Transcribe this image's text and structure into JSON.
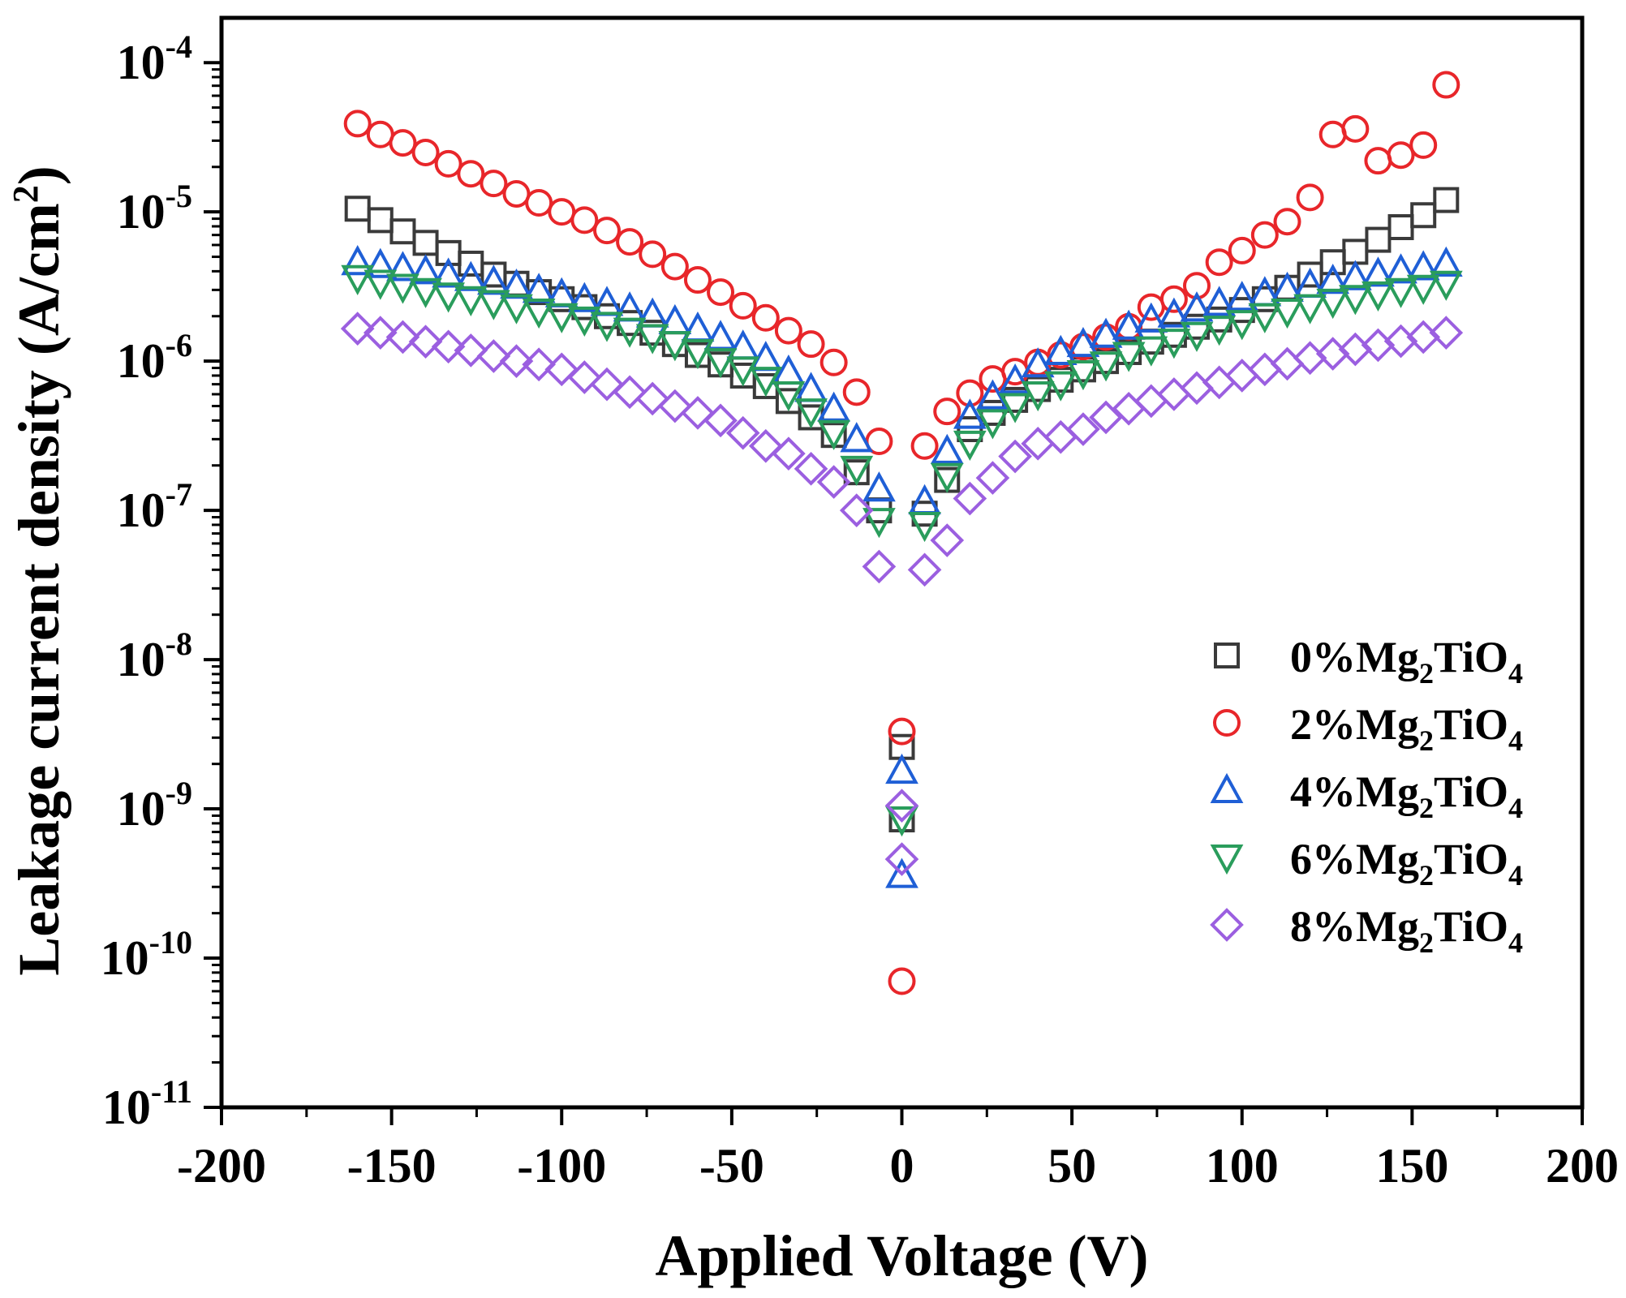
{
  "chart_data": {
    "type": "scatter",
    "title": "",
    "xlabel": "Applied Voltage (V)",
    "ylabel": "Leakage current density (A/cm²)",
    "ylabel_main": "Leakage current density (A/cm",
    "ylabel_sup": "2",
    "ylabel_end": ")",
    "xlim": [
      -200,
      200
    ],
    "ylim_exp": [
      -11,
      -3.7
    ],
    "yscale": "log",
    "x_ticks": [
      -200,
      -150,
      -100,
      -50,
      0,
      50,
      100,
      150,
      200
    ],
    "x_tick_labels": [
      "-200",
      "-150",
      "-100",
      "-50",
      "0",
      "50",
      "100",
      "150",
      "200"
    ],
    "y_tick_exps": [
      -11,
      -10,
      -9,
      -8,
      -7,
      -6,
      -5,
      -4
    ],
    "y_tick_base": "10",
    "y_tick_sups": [
      "-11",
      "-10",
      "-9",
      "-8",
      "-7",
      "-6",
      "-5",
      "-4"
    ],
    "legend_position": "center-right",
    "series": [
      {
        "name": "0%Mg2TiO4",
        "label_parts": [
          "0%Mg",
          "2",
          "TiO",
          "4"
        ],
        "marker": "square",
        "color": "#3a3a3a",
        "points": [
          [
            -160,
            1.05e-05
          ],
          [
            -153.3,
            8.8e-06
          ],
          [
            -146.7,
            7.4e-06
          ],
          [
            -140,
            6.2e-06
          ],
          [
            -133.3,
            5.3e-06
          ],
          [
            -126.7,
            4.5e-06
          ],
          [
            -120,
            3.8e-06
          ],
          [
            -113.3,
            3.3e-06
          ],
          [
            -106.7,
            2.9e-06
          ],
          [
            -100,
            2.6e-06
          ],
          [
            -93.3,
            2.3e-06
          ],
          [
            -86.7,
            2e-06
          ],
          [
            -80,
            1.8e-06
          ],
          [
            -73.3,
            1.55e-06
          ],
          [
            -66.7,
            1.3e-06
          ],
          [
            -60,
            1.1e-06
          ],
          [
            -53.3,
            9.5e-07
          ],
          [
            -46.7,
            8e-07
          ],
          [
            -40,
            6.8e-07
          ],
          [
            -33.3,
            5.4e-07
          ],
          [
            -26.7,
            4.2e-07
          ],
          [
            -20,
            3.2e-07
          ],
          [
            -13.3,
            1.8e-07
          ],
          [
            -6.7,
            1e-07
          ],
          [
            0,
            2.6e-09
          ],
          [
            0,
            8.5e-10
          ],
          [
            6.7,
            9.5e-08
          ],
          [
            13.3,
            1.6e-07
          ],
          [
            20,
            3.5e-07
          ],
          [
            26.7,
            4.5e-07
          ],
          [
            33.3,
            5.5e-07
          ],
          [
            40,
            6.5e-07
          ],
          [
            46.7,
            7.5e-07
          ],
          [
            53.3,
            8.8e-07
          ],
          [
            60,
            1e-06
          ],
          [
            66.7,
            1.15e-06
          ],
          [
            73.3,
            1.35e-06
          ],
          [
            80,
            1.5e-06
          ],
          [
            86.7,
            1.7e-06
          ],
          [
            93.3,
            1.9e-06
          ],
          [
            100,
            2.2e-06
          ],
          [
            106.7,
            2.6e-06
          ],
          [
            113.3,
            3.1e-06
          ],
          [
            120,
            3.8e-06
          ],
          [
            126.7,
            4.6e-06
          ],
          [
            133.3,
            5.4e-06
          ],
          [
            140,
            6.5e-06
          ],
          [
            146.7,
            7.9e-06
          ],
          [
            153.3,
            9.5e-06
          ],
          [
            160,
            1.2e-05
          ]
        ]
      },
      {
        "name": "2%Mg2TiO4",
        "label_parts": [
          "2%Mg",
          "2",
          "TiO",
          "4"
        ],
        "marker": "circle",
        "color": "#e8262a",
        "points": [
          [
            -160,
            3.9e-05
          ],
          [
            -153.3,
            3.3e-05
          ],
          [
            -146.7,
            2.9e-05
          ],
          [
            -140,
            2.5e-05
          ],
          [
            -133.3,
            2.1e-05
          ],
          [
            -126.7,
            1.8e-05
          ],
          [
            -120,
            1.55e-05
          ],
          [
            -113.3,
            1.32e-05
          ],
          [
            -106.7,
            1.15e-05
          ],
          [
            -100,
            1e-05
          ],
          [
            -93.3,
            8.8e-06
          ],
          [
            -86.7,
            7.5e-06
          ],
          [
            -80,
            6.3e-06
          ],
          [
            -73.3,
            5.2e-06
          ],
          [
            -66.7,
            4.3e-06
          ],
          [
            -60,
            3.5e-06
          ],
          [
            -53.3,
            2.9e-06
          ],
          [
            -46.7,
            2.35e-06
          ],
          [
            -40,
            1.95e-06
          ],
          [
            -33.3,
            1.6e-06
          ],
          [
            -26.7,
            1.3e-06
          ],
          [
            -20,
            9.8e-07
          ],
          [
            -13.3,
            6.2e-07
          ],
          [
            -6.7,
            2.9e-07
          ],
          [
            0,
            3.3e-09
          ],
          [
            0,
            7e-11
          ],
          [
            6.7,
            2.7e-07
          ],
          [
            13.3,
            4.6e-07
          ],
          [
            20,
            6.1e-07
          ],
          [
            26.7,
            7.6e-07
          ],
          [
            33.3,
            8.5e-07
          ],
          [
            40,
            9.8e-07
          ],
          [
            46.7,
            1.1e-06
          ],
          [
            53.3,
            1.25e-06
          ],
          [
            60,
            1.45e-06
          ],
          [
            66.7,
            1.7e-06
          ],
          [
            73.3,
            2.3e-06
          ],
          [
            80,
            2.6e-06
          ],
          [
            86.7,
            3.2e-06
          ],
          [
            93.3,
            4.6e-06
          ],
          [
            100,
            5.5e-06
          ],
          [
            106.7,
            7e-06
          ],
          [
            113.3,
            8.6e-06
          ],
          [
            120,
            1.25e-05
          ],
          [
            126.7,
            3.3e-05
          ],
          [
            133.3,
            3.6e-05
          ],
          [
            140,
            2.2e-05
          ],
          [
            146.7,
            2.4e-05
          ],
          [
            153.3,
            2.8e-05
          ],
          [
            160,
            7.1e-05
          ]
        ]
      },
      {
        "name": "4%Mg2TiO4",
        "label_parts": [
          "4%Mg",
          "2",
          "TiO",
          "4"
        ],
        "marker": "triangle-up",
        "color": "#1f5fd6",
        "points": [
          [
            -160,
            4.6e-06
          ],
          [
            -153.3,
            4.4e-06
          ],
          [
            -146.7,
            4.2e-06
          ],
          [
            -140,
            4e-06
          ],
          [
            -133.3,
            3.8e-06
          ],
          [
            -126.7,
            3.6e-06
          ],
          [
            -120,
            3.4e-06
          ],
          [
            -113.3,
            3.2e-06
          ],
          [
            -106.7,
            3e-06
          ],
          [
            -100,
            2.8e-06
          ],
          [
            -93.3,
            2.6e-06
          ],
          [
            -86.7,
            2.45e-06
          ],
          [
            -80,
            2.25e-06
          ],
          [
            -73.3,
            2.05e-06
          ],
          [
            -66.7,
            1.85e-06
          ],
          [
            -60,
            1.65e-06
          ],
          [
            -53.3,
            1.45e-06
          ],
          [
            -46.7,
            1.25e-06
          ],
          [
            -40,
            1.05e-06
          ],
          [
            -33.3,
            8.5e-07
          ],
          [
            -26.7,
            6.5e-07
          ],
          [
            -20,
            4.8e-07
          ],
          [
            -13.3,
            3e-07
          ],
          [
            -6.7,
            1.4e-07
          ],
          [
            0,
            1.8e-09
          ],
          [
            0,
            3.6e-10
          ],
          [
            6.7,
            1.15e-07
          ],
          [
            13.3,
            2.5e-07
          ],
          [
            20,
            4.3e-07
          ],
          [
            26.7,
            5.8e-07
          ],
          [
            33.3,
            7.4e-07
          ],
          [
            40,
            9.5e-07
          ],
          [
            46.7,
            1.15e-06
          ],
          [
            53.3,
            1.3e-06
          ],
          [
            60,
            1.5e-06
          ],
          [
            66.7,
            1.7e-06
          ],
          [
            73.3,
            1.9e-06
          ],
          [
            80,
            2.05e-06
          ],
          [
            86.7,
            2.25e-06
          ],
          [
            93.3,
            2.45e-06
          ],
          [
            100,
            2.65e-06
          ],
          [
            106.7,
            2.85e-06
          ],
          [
            113.3,
            3.05e-06
          ],
          [
            120,
            3.25e-06
          ],
          [
            126.7,
            3.45e-06
          ],
          [
            133.3,
            3.65e-06
          ],
          [
            140,
            3.85e-06
          ],
          [
            146.7,
            4.05e-06
          ],
          [
            153.3,
            4.25e-06
          ],
          [
            160,
            4.5e-06
          ]
        ]
      },
      {
        "name": "6%Mg2TiO4",
        "label_parts": [
          "6%Mg",
          "2",
          "TiO",
          "4"
        ],
        "marker": "triangle-down",
        "color": "#2a9d5c",
        "points": [
          [
            -160,
            3.6e-06
          ],
          [
            -153.3,
            3.35e-06
          ],
          [
            -146.7,
            3.15e-06
          ],
          [
            -140,
            2.95e-06
          ],
          [
            -133.3,
            2.75e-06
          ],
          [
            -126.7,
            2.6e-06
          ],
          [
            -120,
            2.45e-06
          ],
          [
            -113.3,
            2.3e-06
          ],
          [
            -106.7,
            2.15e-06
          ],
          [
            -100,
            2e-06
          ],
          [
            -93.3,
            1.9e-06
          ],
          [
            -86.7,
            1.75e-06
          ],
          [
            -80,
            1.6e-06
          ],
          [
            -73.3,
            1.45e-06
          ],
          [
            -66.7,
            1.3e-06
          ],
          [
            -60,
            1.15e-06
          ],
          [
            -53.3,
            1e-06
          ],
          [
            -46.7,
            8.8e-07
          ],
          [
            -40,
            7.5e-07
          ],
          [
            -33.3,
            6e-07
          ],
          [
            -26.7,
            4.6e-07
          ],
          [
            -20,
            3.3e-07
          ],
          [
            -13.3,
            1.9e-07
          ],
          [
            -6.7,
            8.5e-08
          ],
          [
            0,
            8.5e-10
          ],
          [
            6.7,
            8e-08
          ],
          [
            13.3,
            1.7e-07
          ],
          [
            20,
            2.8e-07
          ],
          [
            26.7,
            3.9e-07
          ],
          [
            33.3,
            5e-07
          ],
          [
            40,
            6e-07
          ],
          [
            46.7,
            7e-07
          ],
          [
            53.3,
            8.3e-07
          ],
          [
            60,
            9.5e-07
          ],
          [
            66.7,
            1.1e-06
          ],
          [
            73.3,
            1.2e-06
          ],
          [
            80,
            1.35e-06
          ],
          [
            86.7,
            1.5e-06
          ],
          [
            93.3,
            1.65e-06
          ],
          [
            100,
            1.8e-06
          ],
          [
            106.7,
            2e-06
          ],
          [
            113.3,
            2.15e-06
          ],
          [
            120,
            2.3e-06
          ],
          [
            126.7,
            2.5e-06
          ],
          [
            133.3,
            2.65e-06
          ],
          [
            140,
            2.8e-06
          ],
          [
            146.7,
            2.95e-06
          ],
          [
            153.3,
            3.1e-06
          ],
          [
            160,
            3.3e-06
          ]
        ]
      },
      {
        "name": "8%Mg2TiO4",
        "label_parts": [
          "8%Mg",
          "2",
          "TiO",
          "4"
        ],
        "marker": "diamond",
        "color": "#9b5fe0",
        "points": [
          [
            -160,
            1.65e-06
          ],
          [
            -153.3,
            1.55e-06
          ],
          [
            -146.7,
            1.45e-06
          ],
          [
            -140,
            1.35e-06
          ],
          [
            -133.3,
            1.25e-06
          ],
          [
            -126.7,
            1.18e-06
          ],
          [
            -120,
            1.08e-06
          ],
          [
            -113.3,
            1e-06
          ],
          [
            -106.7,
            9.5e-07
          ],
          [
            -100,
            8.8e-07
          ],
          [
            -93.3,
            7.8e-07
          ],
          [
            -86.7,
            7e-07
          ],
          [
            -80,
            6.2e-07
          ],
          [
            -73.3,
            5.6e-07
          ],
          [
            -66.7,
            5e-07
          ],
          [
            -60,
            4.5e-07
          ],
          [
            -53.3,
            4e-07
          ],
          [
            -46.7,
            3.3e-07
          ],
          [
            -40,
            2.7e-07
          ],
          [
            -33.3,
            2.4e-07
          ],
          [
            -26.7,
            1.9e-07
          ],
          [
            -20,
            1.55e-07
          ],
          [
            -13.3,
            1e-07
          ],
          [
            -6.7,
            4.2e-08
          ],
          [
            0,
            1.05e-09
          ],
          [
            0,
            4.6e-10
          ],
          [
            6.7,
            4e-08
          ],
          [
            13.3,
            6.3e-08
          ],
          [
            20,
            1.2e-07
          ],
          [
            26.7,
            1.65e-07
          ],
          [
            33.3,
            2.3e-07
          ],
          [
            40,
            2.8e-07
          ],
          [
            46.7,
            3.1e-07
          ],
          [
            53.3,
            3.5e-07
          ],
          [
            60,
            4.2e-07
          ],
          [
            66.7,
            4.8e-07
          ],
          [
            73.3,
            5.4e-07
          ],
          [
            80,
            6e-07
          ],
          [
            86.7,
            6.6e-07
          ],
          [
            93.3,
            7.2e-07
          ],
          [
            100,
            8e-07
          ],
          [
            106.7,
            8.8e-07
          ],
          [
            113.3,
            9.6e-07
          ],
          [
            120,
            1.05e-06
          ],
          [
            126.7,
            1.12e-06
          ],
          [
            133.3,
            1.2e-06
          ],
          [
            140,
            1.28e-06
          ],
          [
            146.7,
            1.36e-06
          ],
          [
            153.3,
            1.45e-06
          ],
          [
            160,
            1.55e-06
          ]
        ]
      }
    ]
  }
}
